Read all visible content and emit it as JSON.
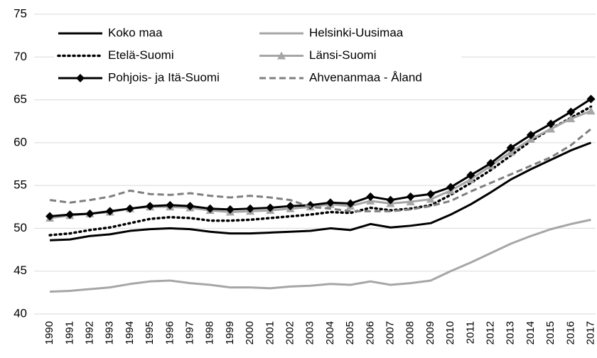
{
  "chart_data": {
    "type": "line",
    "categories": [
      "1990",
      "1991",
      "1992",
      "1993",
      "1994",
      "1995",
      "1996",
      "1997",
      "1998",
      "1999",
      "2000",
      "2001",
      "2002",
      "2003",
      "2004",
      "2005",
      "2006",
      "2007",
      "2008",
      "2009",
      "2010",
      "2011",
      "2012",
      "2013",
      "2014",
      "2015",
      "2016",
      "2017"
    ],
    "series": [
      {
        "name": "Koko maa",
        "color": "#000000",
        "dash": "solid",
        "marker": "none",
        "values": [
          48.6,
          48.7,
          49.1,
          49.3,
          49.7,
          49.9,
          50.0,
          49.9,
          49.6,
          49.4,
          49.4,
          49.5,
          49.6,
          49.7,
          50.0,
          49.8,
          50.5,
          50.1,
          50.3,
          50.6,
          51.6,
          52.8,
          54.2,
          55.7,
          56.9,
          58.0,
          59.1,
          60.0
        ]
      },
      {
        "name": "Helsinki-Uusimaa",
        "color": "#a6a6a6",
        "dash": "solid",
        "marker": "none",
        "values": [
          42.6,
          42.7,
          42.9,
          43.1,
          43.5,
          43.8,
          43.9,
          43.6,
          43.4,
          43.1,
          43.1,
          43.0,
          43.2,
          43.3,
          43.5,
          43.4,
          43.8,
          43.4,
          43.6,
          43.9,
          45.0,
          46.0,
          47.1,
          48.2,
          49.1,
          49.9,
          50.5,
          51.0
        ]
      },
      {
        "name": "Etelä-Suomi",
        "color": "#000000",
        "dash": "dotted",
        "marker": "none",
        "values": [
          49.2,
          49.4,
          49.8,
          50.1,
          50.6,
          51.1,
          51.3,
          51.2,
          50.9,
          50.9,
          51.0,
          51.2,
          51.4,
          51.6,
          51.9,
          51.8,
          52.4,
          52.1,
          52.3,
          52.7,
          53.9,
          55.3,
          56.8,
          58.5,
          60.2,
          61.6,
          62.9,
          64.2
        ]
      },
      {
        "name": "Länsi-Suomi",
        "color": "#a6a6a6",
        "dash": "solid",
        "marker": "triangle",
        "values": [
          51.2,
          51.5,
          51.7,
          51.9,
          52.3,
          52.5,
          52.5,
          52.4,
          52.1,
          51.9,
          52.0,
          52.1,
          52.3,
          52.5,
          52.8,
          52.6,
          53.2,
          52.9,
          53.1,
          53.4,
          54.4,
          55.7,
          57.3,
          58.9,
          60.4,
          61.6,
          62.8,
          63.7
        ]
      },
      {
        "name": "Pohjois- ja Itä-Suomi",
        "color": "#000000",
        "dash": "solid",
        "marker": "diamond",
        "values": [
          51.4,
          51.6,
          51.7,
          52.0,
          52.3,
          52.6,
          52.7,
          52.6,
          52.3,
          52.2,
          52.3,
          52.4,
          52.6,
          52.7,
          53.0,
          52.9,
          53.7,
          53.3,
          53.7,
          54.0,
          54.8,
          56.2,
          57.6,
          59.4,
          60.9,
          62.2,
          63.6,
          65.1
        ]
      },
      {
        "name": "Ahvenanmaa - Åland",
        "color": "#7f7f7f",
        "dash": "dashed",
        "marker": "none",
        "values": [
          53.3,
          53.0,
          53.3,
          53.7,
          54.4,
          54.0,
          53.9,
          54.1,
          53.8,
          53.6,
          53.8,
          53.6,
          53.3,
          52.5,
          52.3,
          52.0,
          52.0,
          52.0,
          52.2,
          52.6,
          53.2,
          54.3,
          55.3,
          56.3,
          57.3,
          58.3,
          59.7,
          61.6
        ]
      }
    ],
    "ylim": [
      40,
      75
    ],
    "yticks": [
      40,
      45,
      50,
      55,
      60,
      65,
      70,
      75
    ],
    "grid": true
  }
}
